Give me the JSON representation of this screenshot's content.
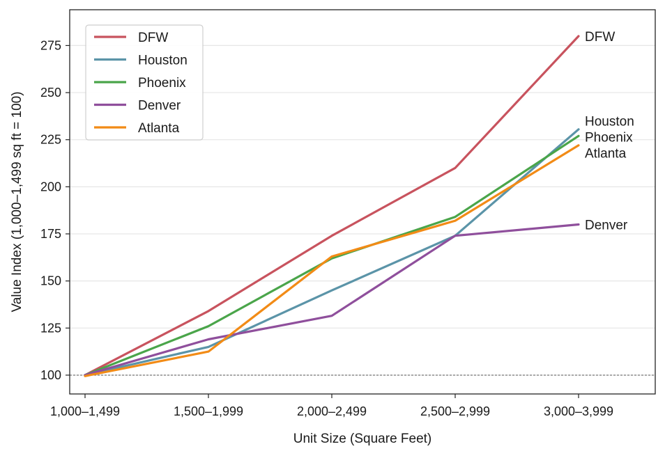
{
  "chart_data": {
    "type": "line",
    "title": "",
    "xlabel": "Unit Size (Square Feet)",
    "ylabel": "Value Index (1,000–1,499 sq ft = 100)",
    "categories": [
      "1,000–1,499",
      "1,500–1,999",
      "2,000–2,499",
      "2,500–2,999",
      "3,000–3,999"
    ],
    "ylim": [
      90,
      294
    ],
    "yticks": [
      100,
      125,
      150,
      175,
      200,
      225,
      250,
      275
    ],
    "grid": "horizontal",
    "legend_position": "top-left",
    "reference_line": 100,
    "series": [
      {
        "name": "DFW",
        "color": "#c8535e",
        "values": [
          100,
          134,
          174,
          210,
          280
        ]
      },
      {
        "name": "Houston",
        "color": "#5b94a8",
        "values": [
          100,
          115,
          145,
          174,
          230.5
        ]
      },
      {
        "name": "Phoenix",
        "color": "#4aa54a",
        "values": [
          100,
          126,
          162,
          184,
          227
        ]
      },
      {
        "name": "Denver",
        "color": "#8f4f9c",
        "values": [
          100,
          119,
          131.5,
          174,
          180
        ]
      },
      {
        "name": "Atlanta",
        "color": "#f28b16",
        "values": [
          99.5,
          112.5,
          163,
          182,
          222
        ]
      }
    ]
  }
}
